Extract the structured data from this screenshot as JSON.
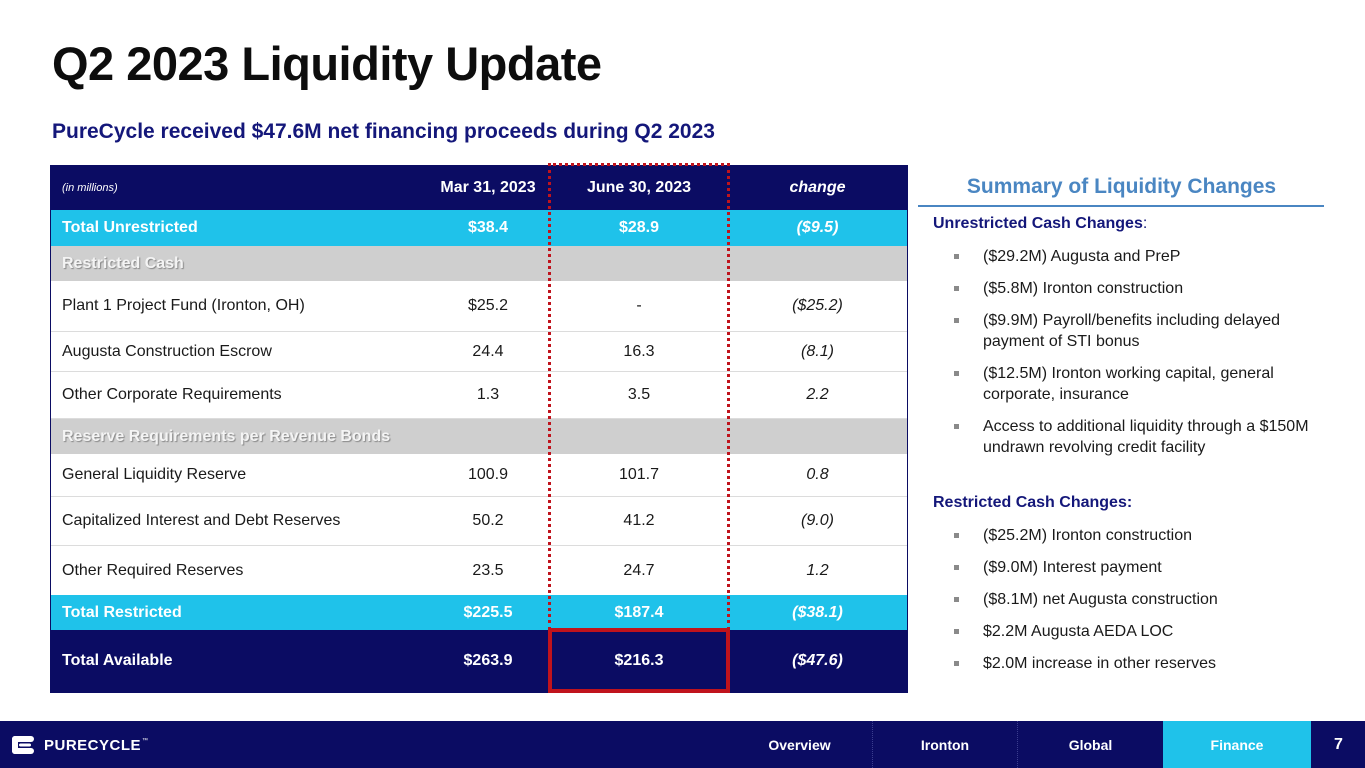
{
  "title": "Q2 2023 Liquidity Update",
  "subtitle": "PureCycle received $47.6M net financing proceeds during Q2 2023",
  "table": {
    "header": {
      "units": "(in millions)",
      "col1": "Mar 31, 2023",
      "col2": "June 30, 2023",
      "col3": "change"
    },
    "total_unrestricted": {
      "label": "Total Unrestricted",
      "v1": "$38.4",
      "v2": "$28.9",
      "v3": "($9.5)"
    },
    "restricted_cash_label": "Restricted Cash",
    "restricted_rows": [
      {
        "label": "Plant 1 Project Fund (Ironton, OH)",
        "v1": "$25.2",
        "v2": "-",
        "v3": "($25.2)"
      },
      {
        "label": "Augusta Construction Escrow",
        "v1": "24.4",
        "v2": "16.3",
        "v3": "(8.1)"
      },
      {
        "label": "Other Corporate Requirements",
        "v1": "1.3",
        "v2": "3.5",
        "v3": "2.2"
      }
    ],
    "reserve_label": "Reserve Requirements per Revenue Bonds",
    "reserve_rows": [
      {
        "label": "General Liquidity Reserve",
        "v1": "100.9",
        "v2": "101.7",
        "v3": "0.8"
      },
      {
        "label": "Capitalized Interest and Debt Reserves",
        "v1": "50.2",
        "v2": "41.2",
        "v3": "(9.0)"
      },
      {
        "label": "Other Required Reserves",
        "v1": "23.5",
        "v2": "24.7",
        "v3": "1.2"
      }
    ],
    "total_restricted": {
      "label": "Total Restricted",
      "v1": "$225.5",
      "v2": "$187.4",
      "v3": "($38.1)"
    },
    "total_available": {
      "label": "Total Available",
      "v1": "$263.9",
      "v2": "$216.3",
      "v3": "($47.6)"
    }
  },
  "summary": {
    "title": "Summary of Liquidity Changes",
    "unrestricted_head": "Unrestricted Cash Changes",
    "unrestricted_colon": ":",
    "unrestricted_items": [
      "($29.2M) Augusta and PreP",
      "($5.8M) Ironton construction",
      "($9.9M) Payroll/benefits including delayed payment of STI bonus",
      "($12.5M) Ironton working capital, general corporate, insurance",
      "Access to additional liquidity through a $150M undrawn revolving credit facility"
    ],
    "restricted_head": "Restricted Cash Changes:",
    "restricted_items": [
      "($25.2M) Ironton construction",
      "($9.0M) Interest payment",
      "($8.1M) net Augusta construction",
      "$2.2M Augusta AEDA LOC",
      "$2.0M increase in other reserves"
    ]
  },
  "footer": {
    "logo_text": "PURECYCLE",
    "logo_tm": "™",
    "nav": [
      "Overview",
      "Ironton",
      "Global",
      "Finance"
    ],
    "active_nav": "Finance",
    "page_number": "7"
  },
  "colors": {
    "navy": "#0b0c63",
    "cyan": "#1fc2ea",
    "highlight_red": "#c0131c",
    "summary_blue": "#4a86c2"
  }
}
